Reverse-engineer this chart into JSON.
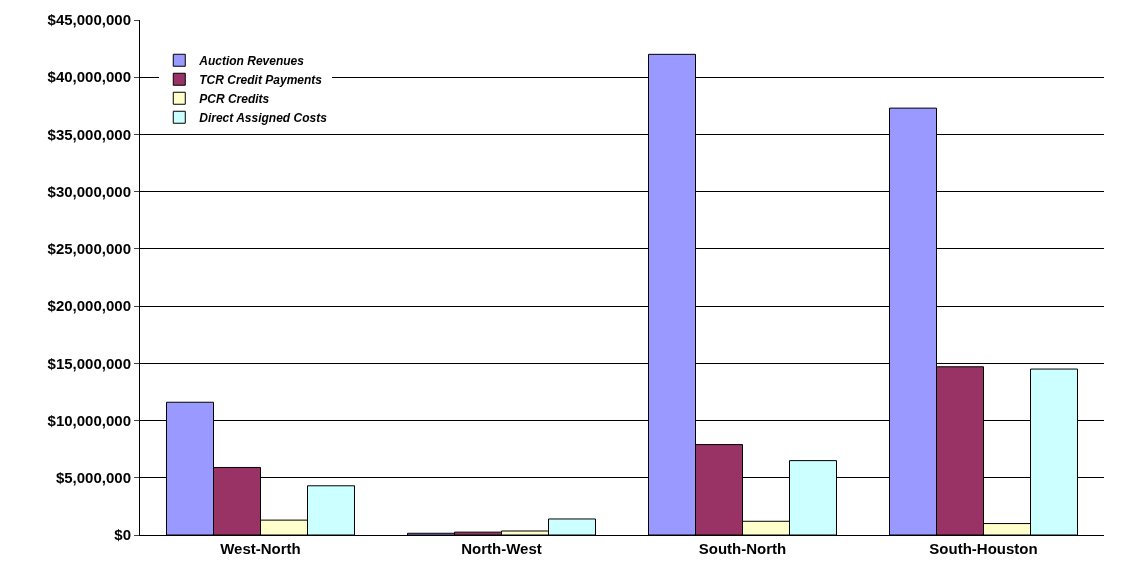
{
  "chart_data": {
    "type": "bar",
    "categories": [
      "West-North",
      "North-West",
      "South-North",
      "South-Houston"
    ],
    "series": [
      {
        "name": "Auction Revenues",
        "color": "#9999ff",
        "values": [
          11600000,
          150000,
          42000000,
          37300000
        ]
      },
      {
        "name": "TCR Credit Payments",
        "color": "#993366",
        "values": [
          5900000,
          250000,
          7900000,
          14700000
        ]
      },
      {
        "name": "PCR Credits",
        "color": "#ffffcc",
        "values": [
          1300000,
          350000,
          1200000,
          1000000
        ]
      },
      {
        "name": "Direct Assigned Costs",
        "color": "#ccffff",
        "values": [
          4300000,
          1400000,
          6500000,
          14500000
        ]
      }
    ],
    "ylim": [
      0,
      45000000
    ],
    "yticks": [
      {
        "value": 0,
        "label": "$0"
      },
      {
        "value": 5000000,
        "label": "$5,000,000"
      },
      {
        "value": 10000000,
        "label": "$10,000,000"
      },
      {
        "value": 15000000,
        "label": "$15,000,000"
      },
      {
        "value": 20000000,
        "label": "$20,000,000"
      },
      {
        "value": 25000000,
        "label": "$25,000,000"
      },
      {
        "value": 30000000,
        "label": "$30,000,000"
      },
      {
        "value": 35000000,
        "label": "$35,000,000"
      },
      {
        "value": 40000000,
        "label": "$40,000,000"
      },
      {
        "value": 45000000,
        "label": "$45,000,000"
      }
    ],
    "grid": "y",
    "legend": "top left"
  }
}
